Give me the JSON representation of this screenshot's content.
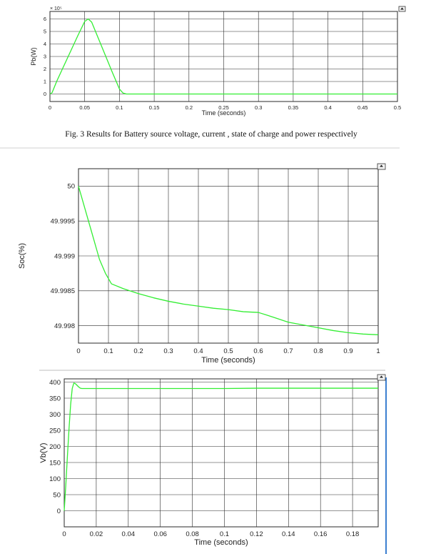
{
  "caption": "Fig. 3 Results for Battery source voltage, current , state of charge and power respectively",
  "colors": {
    "curve": "#33ee33",
    "grid": "#2a2a2a",
    "right_edge_line": "#3b7fd0"
  },
  "chart_data": [
    {
      "id": "pb",
      "type": "line",
      "ylabel": "Pb(W)",
      "xlabel": "Time (seconds)",
      "exponent_label": "× 10⁵",
      "xlim": [
        0,
        0.5
      ],
      "ylim": [
        -0.6,
        6.6
      ],
      "xticks": [
        0,
        0.05,
        0.1,
        0.15,
        0.2,
        0.25,
        0.3,
        0.35,
        0.4,
        0.45,
        0.5
      ],
      "xtick_labels": [
        "0",
        "0.05",
        "0.1",
        "0.15",
        "0.2",
        "0.25",
        "0.3",
        "0.35",
        "0.4",
        "0.45",
        "0.5"
      ],
      "yticks": [
        0,
        1,
        2,
        3,
        4,
        5,
        6
      ],
      "ytick_labels": [
        "0",
        "1",
        "2",
        "3",
        "4",
        "5",
        "6"
      ],
      "grid": true,
      "series": [
        {
          "x": [
            0,
            0.003,
            0.01,
            0.02,
            0.03,
            0.04,
            0.05,
            0.055,
            0.06,
            0.07,
            0.08,
            0.09,
            0.1,
            0.105,
            0.11,
            0.5
          ],
          "y": [
            0,
            0.1,
            1.05,
            2.25,
            3.45,
            4.65,
            5.8,
            6.0,
            5.75,
            4.4,
            3.05,
            1.7,
            0.4,
            0.08,
            0,
            0
          ]
        }
      ]
    },
    {
      "id": "soc",
      "type": "line",
      "ylabel": "Soc(%)",
      "xlabel": "Time (seconds)",
      "xlim": [
        0,
        1
      ],
      "ylim": [
        49.99775,
        50.00025
      ],
      "xticks": [
        0,
        0.1,
        0.2,
        0.3,
        0.4,
        0.5,
        0.6,
        0.7,
        0.8,
        0.9,
        1
      ],
      "xtick_labels": [
        "0",
        "0.1",
        "0.2",
        "0.3",
        "0.4",
        "0.5",
        "0.6",
        "0.7",
        "0.8",
        "0.9",
        "1"
      ],
      "yticks": [
        49.998,
        49.9985,
        49.999,
        49.9995,
        50
      ],
      "ytick_labels": [
        "49.998",
        "49.9985",
        "49.999",
        "49.9995",
        "50"
      ],
      "grid": true,
      "series": [
        {
          "x": [
            0,
            0.01,
            0.03,
            0.05,
            0.07,
            0.09,
            0.11,
            0.15,
            0.2,
            0.25,
            0.3,
            0.35,
            0.4,
            0.45,
            0.5,
            0.55,
            0.6,
            0.63,
            0.7,
            0.75,
            0.8,
            0.85,
            0.9,
            0.95,
            1.0
          ],
          "y": [
            50.0,
            49.99985,
            49.99955,
            49.99925,
            49.99895,
            49.99875,
            49.9986,
            49.99853,
            49.99846,
            49.9984,
            49.99835,
            49.99831,
            49.99828,
            49.99825,
            49.99823,
            49.9982,
            49.99819,
            49.99815,
            49.99805,
            49.99801,
            49.99797,
            49.99793,
            49.9979,
            49.99788,
            49.99787
          ]
        }
      ]
    },
    {
      "id": "vb",
      "type": "line",
      "ylabel": "Vb(V)",
      "xlabel": "Time (seconds)",
      "xlim": [
        0,
        0.196
      ],
      "ylim": [
        -50,
        410
      ],
      "xticks": [
        0,
        0.02,
        0.04,
        0.06,
        0.08,
        0.1,
        0.12,
        0.14,
        0.16,
        0.18
      ],
      "xtick_labels": [
        "0",
        "0.02",
        "0.04",
        "0.06",
        "0.08",
        "0.1",
        "0.12",
        "0.14",
        "0.16",
        "0.18"
      ],
      "yticks": [
        0,
        50,
        100,
        150,
        200,
        250,
        300,
        350,
        400
      ],
      "ytick_labels": [
        "0",
        "50",
        "100",
        "150",
        "200",
        "250",
        "300",
        "350",
        "400"
      ],
      "grid": true,
      "series": [
        {
          "x": [
            0,
            0.001,
            0.002,
            0.003,
            0.004,
            0.005,
            0.006,
            0.007,
            0.008,
            0.009,
            0.01,
            0.011,
            0.013,
            0.05,
            0.1,
            0.12,
            0.196
          ],
          "y": [
            0,
            80,
            170,
            255,
            330,
            380,
            397,
            395,
            390,
            385,
            381,
            380,
            380,
            380,
            380,
            381,
            381
          ]
        }
      ]
    }
  ]
}
